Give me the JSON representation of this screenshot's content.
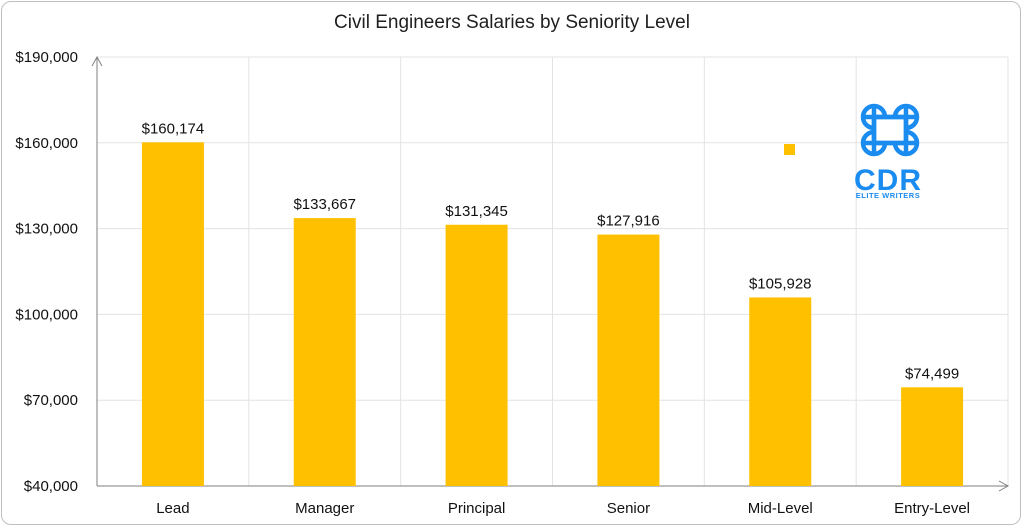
{
  "chart_data": {
    "type": "bar",
    "title": "Civil Engineers Salaries by Seniority Level",
    "categories": [
      "Lead",
      "Manager",
      "Principal",
      "Senior",
      "Mid-Level",
      "Entry-Level"
    ],
    "values": [
      160174,
      133667,
      131345,
      127916,
      105928,
      74499
    ],
    "data_labels": [
      "$160,174",
      "$133,667",
      "$131,345",
      "$127,916",
      "$105,928",
      "$74,499"
    ],
    "ylim": [
      40000,
      190000
    ],
    "yticks": [
      40000,
      70000,
      100000,
      130000,
      160000,
      190000
    ],
    "ytick_labels": [
      "$40,000",
      "$70,000",
      "$100,000",
      "$130,000",
      "$160,000",
      "$190,000"
    ],
    "bar_color": "#ffc000",
    "grid": true,
    "legend": false
  },
  "logo": {
    "text": "CDR",
    "tagline": "ELITE WRITERS",
    "color": "#1a8cf0"
  }
}
